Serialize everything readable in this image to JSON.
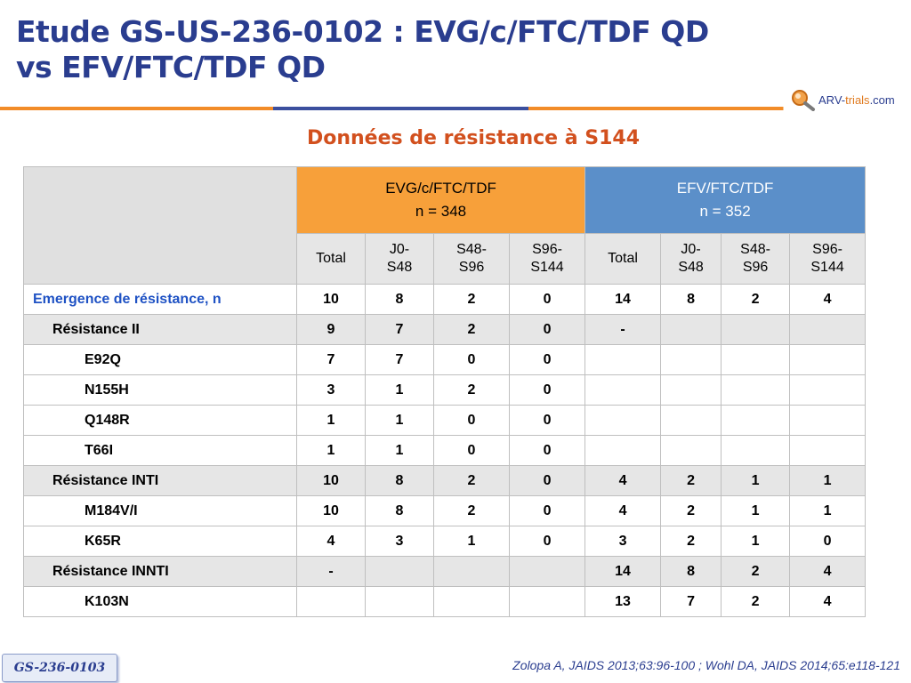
{
  "slide": {
    "title_line1": "Etude GS-US-236-0102 : EVG/c/FTC/TDF QD",
    "title_line2": "vs EFV/FTC/TDF QD",
    "subtitle": "Données de résistance à S144",
    "logo_text_main": "ARV-",
    "logo_text_accent": "trials",
    "logo_text_suffix": ".com",
    "badge": "GS-236-0103",
    "reference": "Zolopa A, JAIDS 2013;63:96-100 ; Wohl DA, JAIDS 2014;65:e118-121",
    "colors": {
      "title": "#2a3d8f",
      "subtitle": "#d2501e",
      "evg": "#f7a03a",
      "efv": "#5b8fc9"
    }
  },
  "table": {
    "groups": [
      {
        "name": "EVG/c/FTC/TDF",
        "n": "n = 348"
      },
      {
        "name": "EFV/FTC/TDF",
        "n": "n = 352"
      }
    ],
    "subheaders": [
      {
        "line1": "Total",
        "line2": ""
      },
      {
        "line1": "J0-",
        "line2": "S48"
      },
      {
        "line1": "S48-",
        "line2": "S96"
      },
      {
        "line1": "S96-",
        "line2": "S144"
      }
    ],
    "rows": [
      {
        "label": "Emergence de résistance, n",
        "values": [
          "10",
          "8",
          "2",
          "0",
          "14",
          "8",
          "2",
          "4"
        ]
      },
      {
        "label": "Résistance II",
        "values": [
          "9",
          "7",
          "2",
          "0",
          "-",
          "",
          "",
          ""
        ]
      },
      {
        "label": "E92Q",
        "values": [
          "7",
          "7",
          "0",
          "0",
          "",
          "",
          "",
          ""
        ]
      },
      {
        "label": "N155H",
        "values": [
          "3",
          "1",
          "2",
          "0",
          "",
          "",
          "",
          ""
        ]
      },
      {
        "label": "Q148R",
        "values": [
          "1",
          "1",
          "0",
          "0",
          "",
          "",
          "",
          ""
        ]
      },
      {
        "label": "T66I",
        "values": [
          "1",
          "1",
          "0",
          "0",
          "",
          "",
          "",
          ""
        ]
      },
      {
        "label": "Résistance INTI",
        "values": [
          "10",
          "8",
          "2",
          "0",
          "4",
          "2",
          "1",
          "1"
        ]
      },
      {
        "label": "M184V/I",
        "values": [
          "10",
          "8",
          "2",
          "0",
          "4",
          "2",
          "1",
          "1"
        ]
      },
      {
        "label": "K65R",
        "values": [
          "4",
          "3",
          "1",
          "0",
          "3",
          "2",
          "1",
          "0"
        ]
      },
      {
        "label": "Résistance INNTI",
        "values": [
          "-",
          "",
          "",
          "",
          "14",
          "8",
          "2",
          "4"
        ]
      },
      {
        "label": "K103N",
        "values": [
          "",
          "",
          "",
          "",
          "13",
          "7",
          "2",
          "4"
        ]
      }
    ]
  }
}
